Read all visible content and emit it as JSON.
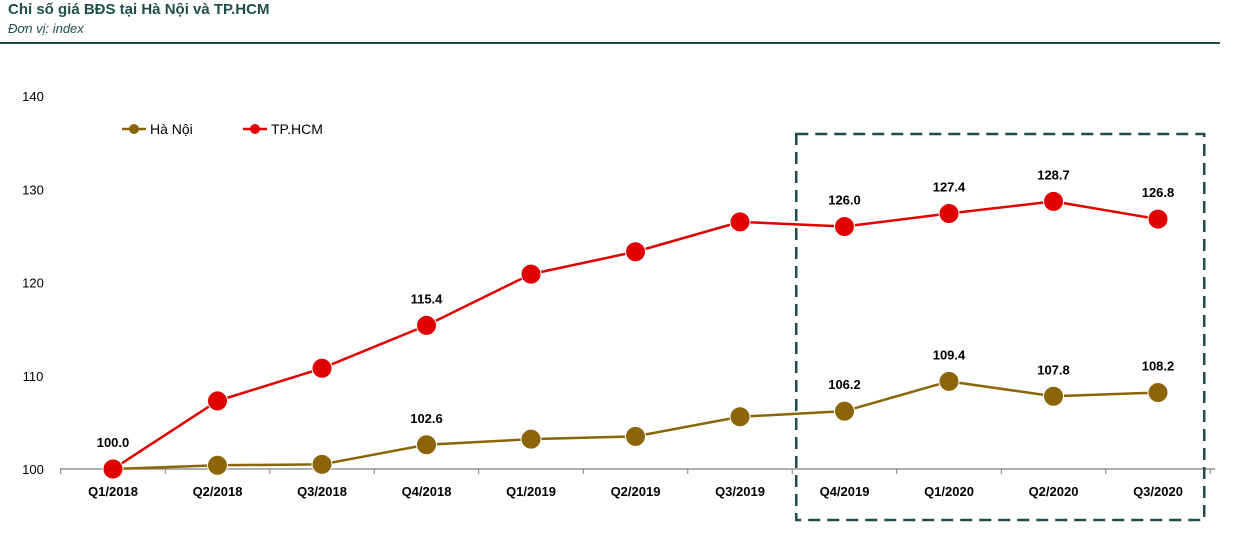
{
  "header": {
    "title": "Chỉ số giá BĐS tại Hà Nội và TP.HCM",
    "subtitle": "Đơn vị: index"
  },
  "chart_data": {
    "type": "line",
    "title": "Chỉ số giá BĐS tại Hà Nội và TP.HCM",
    "subtitle": "Đơn vị: index",
    "categories": [
      "Q1/2018",
      "Q2/2018",
      "Q3/2018",
      "Q4/2018",
      "Q1/2019",
      "Q2/2019",
      "Q3/2019",
      "Q4/2019",
      "Q1/2020",
      "Q2/2020",
      "Q3/2020"
    ],
    "ylim": [
      100,
      140
    ],
    "yticks": [
      100,
      110,
      120,
      130,
      140
    ],
    "grid": false,
    "legend_position": "top-left",
    "series": [
      {
        "name": "Hà Nội",
        "color": "#8b6508",
        "values": [
          100.0,
          100.4,
          100.5,
          102.6,
          103.2,
          103.5,
          105.6,
          106.2,
          109.4,
          107.8,
          108.2
        ],
        "labels": [
          "100.0",
          "",
          "",
          "102.6",
          "",
          "",
          "",
          "106.2",
          "109.4",
          "107.8",
          "108.2"
        ]
      },
      {
        "name": "TP.HCM",
        "color": "#e00000",
        "values": [
          100.0,
          107.3,
          110.8,
          115.4,
          120.9,
          123.3,
          126.5,
          126.0,
          127.4,
          128.7,
          126.8
        ],
        "labels": [
          "",
          "",
          "",
          "115.4",
          "",
          "",
          "",
          "126.0",
          "127.4",
          "128.7",
          "126.8"
        ]
      }
    ],
    "highlight_box": {
      "from_category": "Q4/2019",
      "to_category": "Q3/2020",
      "style": "dashed"
    }
  }
}
